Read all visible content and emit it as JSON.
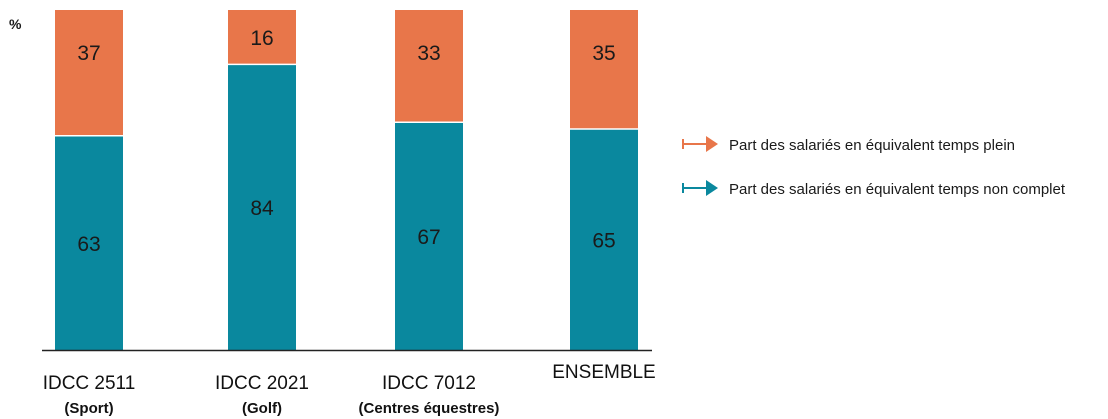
{
  "chart_data": {
    "type": "bar",
    "stacked": true,
    "unit_label": "%",
    "categories": [
      "IDCC 2511",
      "IDCC 2021",
      "IDCC 7012",
      "ENSEMBLE"
    ],
    "category_sublabels": [
      "(Sport)",
      "(Golf)",
      "(Centres équestres)",
      ""
    ],
    "series": [
      {
        "name": "Part des salariés en équivalent temps non complet",
        "color": "#0a889e",
        "values": [
          63,
          84,
          67,
          65
        ]
      },
      {
        "name": "Part des salariés en équivalent temps plein",
        "color": "#e8764a",
        "values": [
          37,
          16,
          33,
          35
        ]
      }
    ],
    "legend_order": [
      1,
      0
    ],
    "ylim": [
      0,
      100
    ],
    "grid": false,
    "legend_position": "right"
  }
}
